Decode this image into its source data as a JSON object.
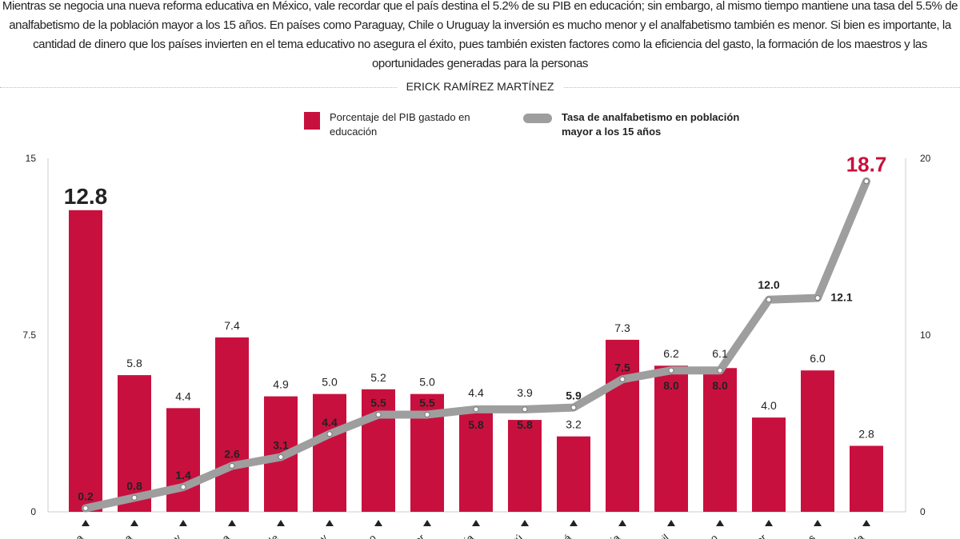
{
  "intro": "Mientras se negocia una nueva reforma educativa en México, vale recordar que el país destina el 5.2% de su PIB en educación; sin embargo, al mismo tiempo mantiene una tasa del 5.5% de analfabetismo de la población mayor a los 15 años. En países como Paraguay, Chile o Uruguay la inversión es mucho menor y el analfabetismo también es menor. Si bien es importante, la cantidad de dinero que los países invierten en el tema educativo no asegura el éxito, pues también existen factores como la eficiencia del gasto, la formación de los maestros y las oportunidades generadas para la personas",
  "byline": "ERICK RAMÍREZ MARTÍNEZ",
  "colors": {
    "bar": "#c8103e",
    "line": "#9e9e9e",
    "highlight": "#c8103e"
  },
  "chart_data": {
    "type": "bar+line",
    "categories": [
      "ba",
      "ma",
      "ay",
      "ca",
      "ile",
      "ay",
      "co",
      "or",
      "ia",
      "rú",
      "ná",
      "ia",
      "sil",
      "co",
      "dor",
      "as",
      "ala"
    ],
    "series": [
      {
        "name": "Porcentaje del PIB gastado en educación",
        "type": "bar",
        "axis": "left",
        "values": [
          12.8,
          5.8,
          4.4,
          7.4,
          4.9,
          5.0,
          5.2,
          5.0,
          4.4,
          3.9,
          3.2,
          7.3,
          6.2,
          6.1,
          4.0,
          6.0,
          2.8
        ]
      },
      {
        "name": "Tasa de analfabetismo en población mayor a los 15 años",
        "type": "line",
        "axis": "right",
        "values": [
          0.2,
          0.8,
          1.4,
          2.6,
          3.1,
          4.4,
          5.5,
          5.5,
          5.8,
          5.8,
          5.9,
          7.5,
          8.0,
          8.0,
          12.0,
          12.1,
          18.7
        ]
      }
    ],
    "left_axis": {
      "range": [
        0,
        15
      ],
      "ticks": [
        "0",
        "7.5",
        "15"
      ]
    },
    "right_axis": {
      "range": [
        0,
        20
      ],
      "ticks": [
        "0",
        "10",
        "20"
      ]
    },
    "legend": "top-center",
    "highlight_label": "18.7"
  }
}
